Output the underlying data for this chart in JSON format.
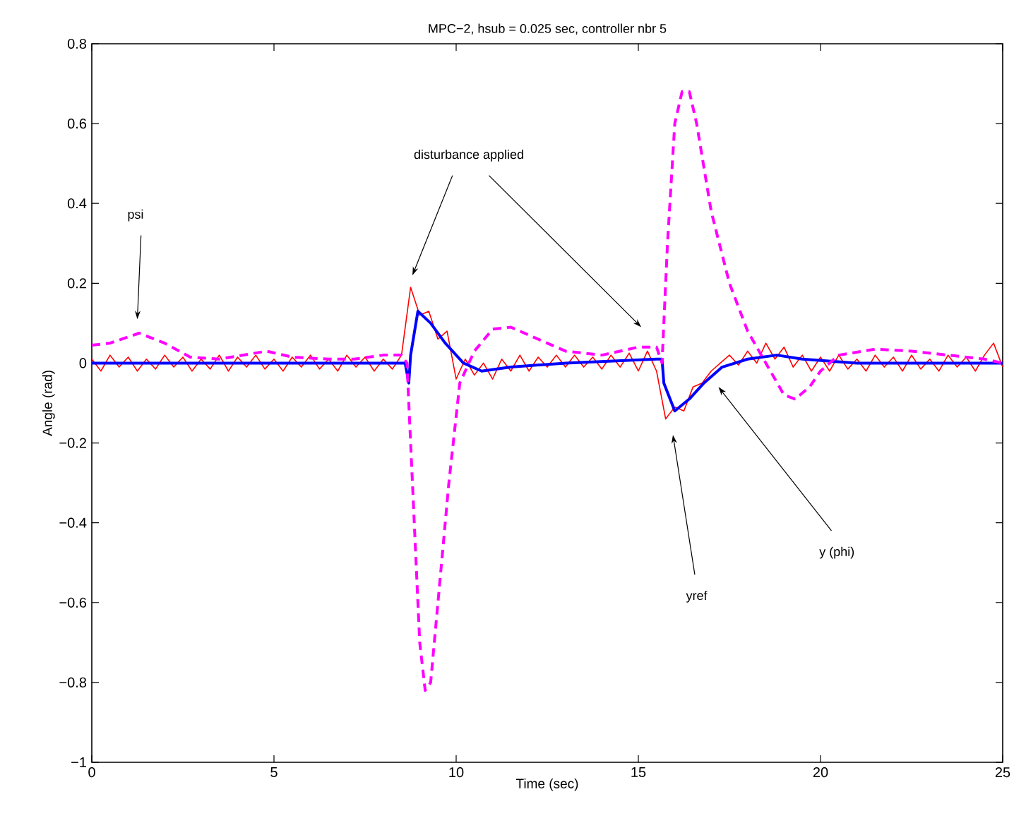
{
  "chart_data": {
    "type": "line",
    "title": "MPC−2, hsub = 0.025 sec, controller nbr 5",
    "xlabel": "Time (sec)",
    "ylabel": "Angle (rad)",
    "xlim": [
      0,
      25
    ],
    "ylim": [
      -1,
      0.8
    ],
    "xticks": [
      0,
      5,
      10,
      15,
      20,
      25
    ],
    "yticks": [
      {
        "value": -1,
        "label": "−1"
      },
      {
        "value": -0.8,
        "label": "−0.8"
      },
      {
        "value": -0.6,
        "label": "−0.6"
      },
      {
        "value": -0.4,
        "label": "−0.4"
      },
      {
        "value": -0.2,
        "label": "−0.2"
      },
      0,
      0.2,
      0.4,
      0.6,
      0.8
    ],
    "grid": false,
    "series": [
      {
        "color": "#ff0000",
        "line_style": "solid",
        "x": [
          0,
          0.25,
          0.5,
          0.75,
          1,
          1.25,
          1.5,
          1.75,
          2,
          2.25,
          2.5,
          2.75,
          3,
          3.25,
          3.5,
          3.75,
          4,
          4.25,
          4.5,
          4.75,
          5,
          5.25,
          5.5,
          5.75,
          6,
          6.25,
          6.5,
          6.75,
          7,
          7.25,
          7.5,
          7.75,
          8,
          8.25,
          8.5,
          8.75,
          9,
          9.25,
          9.5,
          9.75,
          10,
          10.25,
          10.5,
          10.75,
          11,
          11.25,
          11.5,
          11.75,
          12,
          12.25,
          12.5,
          12.75,
          13,
          13.25,
          13.5,
          13.75,
          14,
          14.25,
          14.5,
          14.75,
          15,
          15.25,
          15.5,
          15.75,
          16,
          16.25,
          16.5,
          16.75,
          17,
          17.25,
          17.5,
          17.75,
          18,
          18.25,
          18.5,
          18.75,
          19,
          19.25,
          19.5,
          19.75,
          20,
          20.25,
          20.5,
          20.75,
          21,
          21.25,
          21.5,
          21.75,
          22,
          22.25,
          22.5,
          22.75,
          23,
          23.25,
          23.5,
          23.75,
          24,
          24.25,
          24.5,
          24.75,
          25
        ],
        "values": [
          0.01,
          -0.02,
          0.02,
          -0.01,
          0.015,
          -0.02,
          0.01,
          -0.015,
          0.02,
          -0.01,
          0.015,
          -0.02,
          0.01,
          -0.015,
          0.02,
          -0.02,
          0.015,
          -0.01,
          0.02,
          -0.015,
          0.01,
          -0.02,
          0.015,
          -0.01,
          0.02,
          -0.015,
          0.01,
          -0.02,
          0.02,
          -0.01,
          0.015,
          -0.02,
          0.01,
          -0.015,
          0.02,
          0.19,
          0.12,
          0.13,
          0.06,
          0.08,
          -0.04,
          0.01,
          -0.03,
          0.0,
          -0.04,
          0.01,
          -0.02,
          0.02,
          -0.02,
          0.015,
          -0.01,
          0.02,
          -0.01,
          0.02,
          -0.01,
          0.015,
          -0.015,
          0.02,
          -0.01,
          0.025,
          -0.02,
          0.03,
          -0.02,
          -0.14,
          -0.11,
          -0.12,
          -0.06,
          -0.05,
          -0.02,
          0.0,
          0.02,
          -0.005,
          0.03,
          0.0,
          0.05,
          0.01,
          0.04,
          -0.01,
          0.02,
          -0.02,
          0.015,
          -0.02,
          0.02,
          -0.015,
          0.01,
          -0.02,
          0.02,
          -0.01,
          0.015,
          -0.02,
          0.02,
          -0.015,
          0.01,
          -0.02,
          0.02,
          -0.01,
          0.015,
          -0.02,
          0.02,
          0.05,
          -0.01
        ]
      },
      {
        "color": "#0000ff",
        "line_style": "solid",
        "x": [
          0,
          8.6,
          8.7,
          8.75,
          8.95,
          9.3,
          9.7,
          10.2,
          10.7,
          11.5,
          13,
          15.5,
          15.65,
          15.7,
          16.0,
          16.4,
          16.8,
          17.3,
          18,
          18.8,
          19.5,
          21,
          25
        ],
        "values": [
          0,
          0,
          -0.05,
          0.02,
          0.13,
          0.1,
          0.05,
          0.0,
          -0.02,
          -0.01,
          0,
          0.01,
          0.01,
          -0.05,
          -0.12,
          -0.09,
          -0.05,
          -0.01,
          0.01,
          0.02,
          0.01,
          0,
          0
        ]
      },
      {
        "color": "#ff00ff",
        "line_style": "dashed",
        "x": [
          0,
          0.5,
          1.3,
          2,
          2.7,
          3.5,
          4.8,
          5.5,
          6.5,
          7.2,
          8,
          8.5,
          8.65,
          8.8,
          9.0,
          9.15,
          9.3,
          9.5,
          9.8,
          10.1,
          10.5,
          11,
          11.5,
          12,
          12.5,
          13,
          14,
          15,
          15.5,
          15.65,
          15.8,
          16.0,
          16.2,
          16.4,
          16.6,
          17,
          17.5,
          18,
          18.5,
          19,
          19.3,
          19.7,
          20,
          20.5,
          21.5,
          22.5,
          23.5,
          24.5,
          25
        ],
        "values": [
          0.045,
          0.05,
          0.075,
          0.05,
          0.015,
          0.01,
          0.03,
          0.015,
          0.01,
          0.01,
          0.02,
          0.02,
          0.0,
          -0.3,
          -0.7,
          -0.82,
          -0.8,
          -0.6,
          -0.3,
          -0.05,
          0.03,
          0.085,
          0.09,
          0.07,
          0.05,
          0.03,
          0.02,
          0.04,
          0.04,
          0.0,
          0.3,
          0.6,
          0.68,
          0.68,
          0.6,
          0.38,
          0.2,
          0.08,
          0.0,
          -0.08,
          -0.09,
          -0.06,
          -0.02,
          0.02,
          0.035,
          0.03,
          0.02,
          0.01,
          0.0
        ]
      }
    ],
    "annotations": [
      "psi",
      "disturbance applied",
      "yref",
      "y (phi)"
    ]
  }
}
